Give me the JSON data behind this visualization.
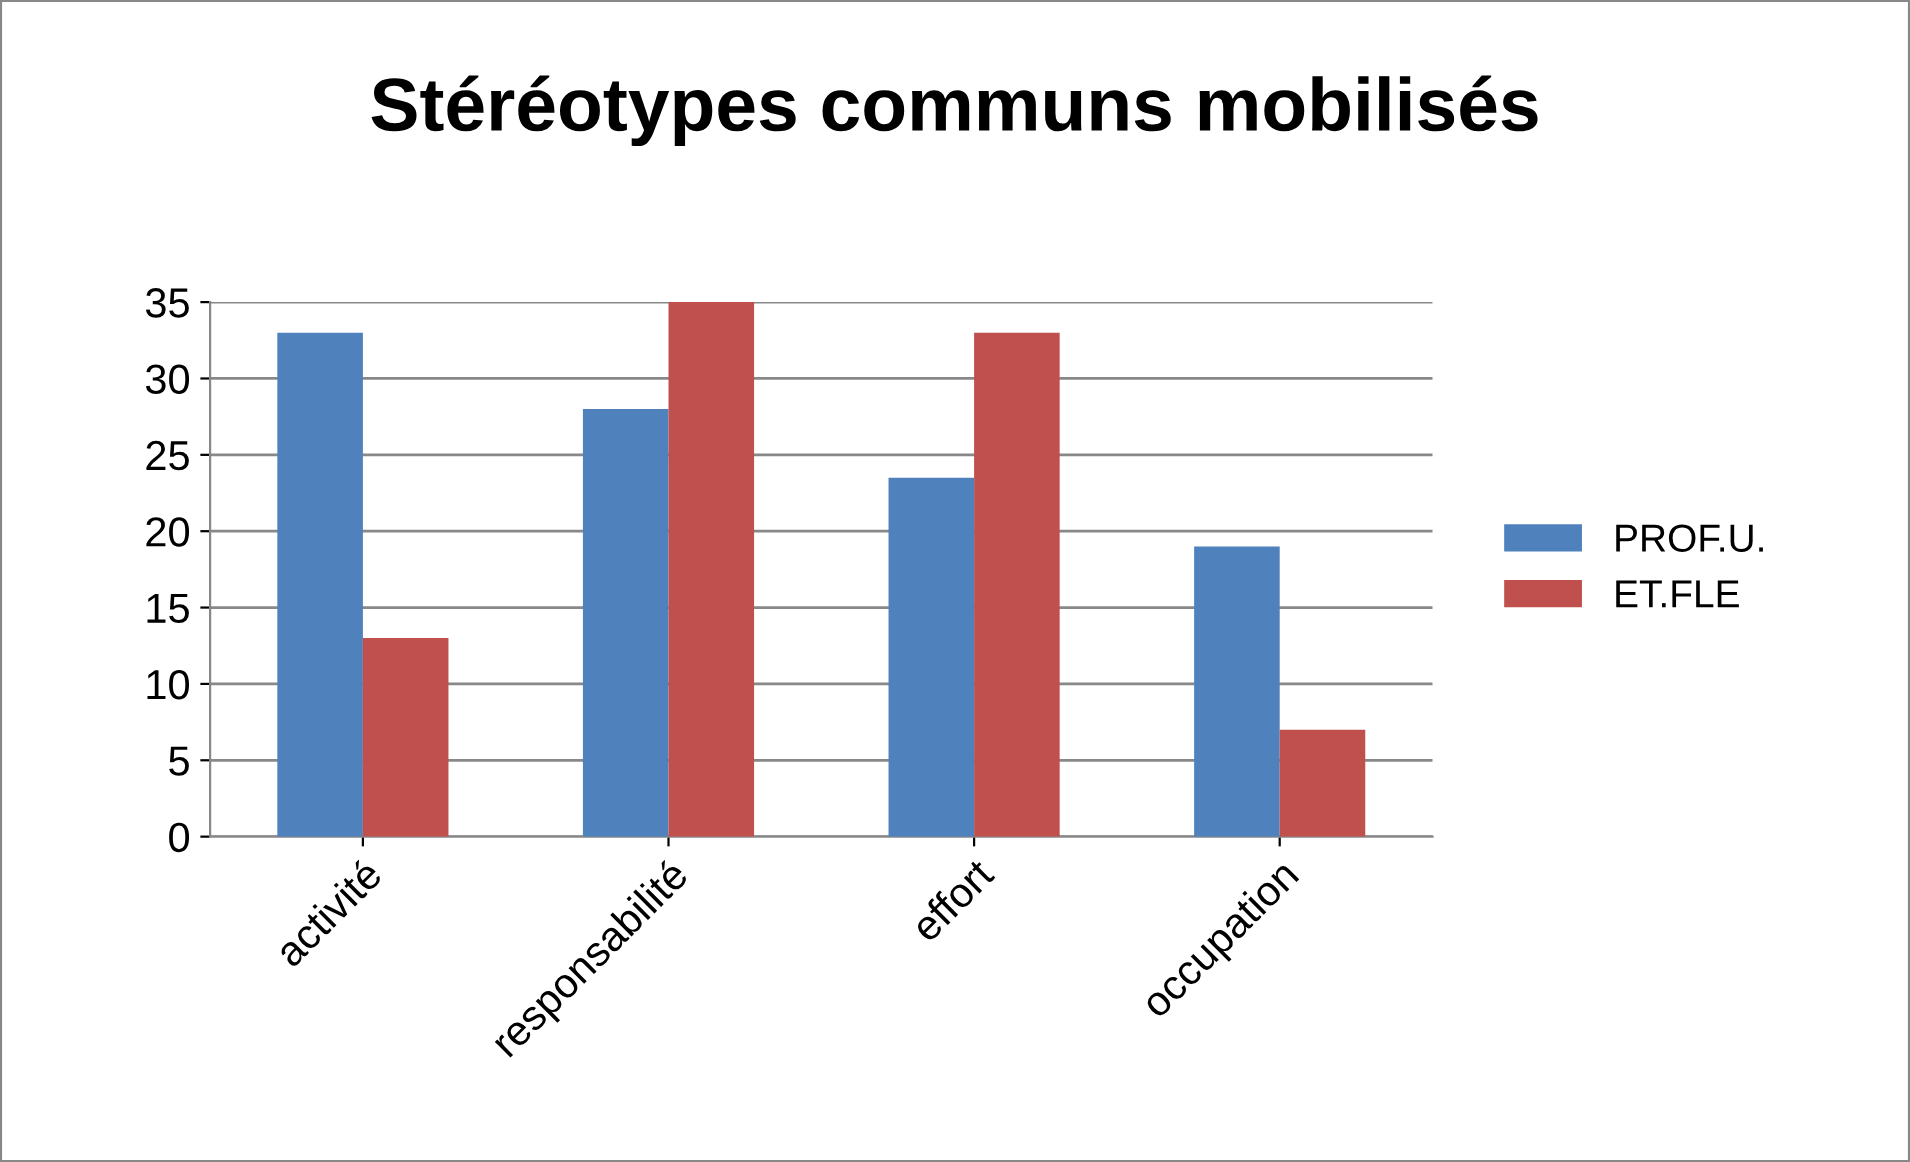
{
  "chart_data": {
    "type": "bar",
    "title": "Stéréotypes communs mobilisés",
    "categories": [
      "activité",
      "responsabilité",
      "effort",
      "occupation"
    ],
    "series": [
      {
        "name": "PROF.U.",
        "color": "#4f81bd",
        "values": [
          33,
          28,
          23.5,
          19
        ]
      },
      {
        "name": "ET.FLE",
        "color": "#c0504d",
        "values": [
          13,
          35,
          33,
          7
        ]
      }
    ],
    "ylim": [
      0,
      35
    ],
    "yticks": [
      0,
      5,
      10,
      15,
      20,
      25,
      30,
      35
    ],
    "grid": "y",
    "legend": "right"
  }
}
